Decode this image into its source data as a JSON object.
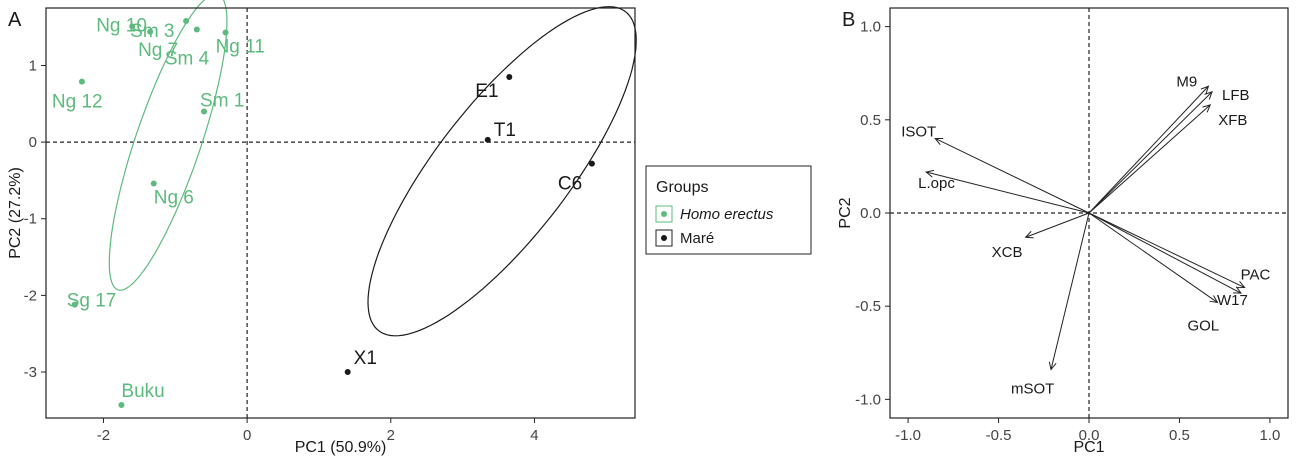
{
  "chart_data": [
    {
      "panel": "A",
      "type": "scatter",
      "xlabel": "PC1 (50.9%)",
      "ylabel": "PC2 (27.2%)",
      "xlim": [
        -2.8,
        5.4
      ],
      "ylim": [
        -3.6,
        1.75
      ],
      "xticks": [
        "-2",
        "0",
        "2",
        "4"
      ],
      "yticks": [
        "-3",
        "-2",
        "-1",
        "0",
        "1"
      ],
      "reference_lines": {
        "x": 0,
        "y": 0,
        "style": "dashed"
      },
      "legend": {
        "title": "Groups",
        "placement": "right",
        "items": [
          {
            "label": "Homo erectus",
            "color": "#5dba7d",
            "italic": true
          },
          {
            "label": "Maré",
            "color": "#1a1a1a",
            "italic": false
          }
        ]
      },
      "series": [
        {
          "name": "Homo erectus",
          "color": "#5dba7d",
          "points": [
            {
              "label": "Ng 10",
              "x": -1.6,
              "y": 1.51
            },
            {
              "label": "Sm 3",
              "x": -1.35,
              "y": 1.44
            },
            {
              "label": "Ng 7",
              "x": -0.85,
              "y": 1.58
            },
            {
              "label": "Sm 4",
              "x": -0.7,
              "y": 1.47
            },
            {
              "label": "Ng 11",
              "x": -0.3,
              "y": 1.43
            },
            {
              "label": "Ng 12",
              "x": -2.3,
              "y": 0.79
            },
            {
              "label": "Sm 1",
              "x": -0.6,
              "y": 0.4
            },
            {
              "label": "Ng 6",
              "x": -1.3,
              "y": -0.54
            },
            {
              "label": "Sg 17",
              "x": -2.4,
              "y": -2.12
            },
            {
              "label": "Buku",
              "x": -1.75,
              "y": -3.43
            }
          ],
          "ellipse": {
            "center": [
              -1.1,
              0.0
            ],
            "semi_axes": [
              2.05,
              0.45
            ],
            "angle_deg": 70
          }
        },
        {
          "name": "Maré",
          "color": "#1a1a1a",
          "points": [
            {
              "label": "E1",
              "x": 3.65,
              "y": 0.85
            },
            {
              "label": "T1",
              "x": 3.35,
              "y": 0.03
            },
            {
              "label": "C6",
              "x": 4.8,
              "y": -0.28
            },
            {
              "label": "X1",
              "x": 1.4,
              "y": -3.0
            }
          ],
          "ellipse": {
            "center": [
              3.55,
              -0.38
            ],
            "semi_axes": [
              2.7,
              0.9
            ],
            "angle_deg": 50
          }
        }
      ]
    },
    {
      "panel": "B",
      "type": "scatter",
      "subtype": "biplot-loadings",
      "xlabel": "PC1",
      "ylabel": "PC2",
      "xlim": [
        -1.1,
        1.1
      ],
      "ylim": [
        -1.1,
        1.1
      ],
      "xticks": [
        "-1.0",
        "-0.5",
        "0.0",
        "0.5",
        "1.0"
      ],
      "yticks": [
        "-1.0",
        "-0.5",
        "0.0",
        "0.5",
        "1.0"
      ],
      "reference_lines": {
        "x": 0,
        "y": 0,
        "style": "dashed"
      },
      "arrows": [
        {
          "label": "M9",
          "x": 0.66,
          "y": 0.68
        },
        {
          "label": "LFB",
          "x": 0.68,
          "y": 0.65
        },
        {
          "label": "XFB",
          "x": 0.67,
          "y": 0.58
        },
        {
          "label": "ISOT",
          "x": -0.85,
          "y": 0.4
        },
        {
          "label": "L.opc",
          "x": -0.9,
          "y": 0.22
        },
        {
          "label": "XCB",
          "x": -0.35,
          "y": -0.13
        },
        {
          "label": "PAC",
          "x": 0.86,
          "y": -0.4
        },
        {
          "label": "W17",
          "x": 0.84,
          "y": -0.43
        },
        {
          "label": "GOL",
          "x": 0.71,
          "y": -0.48
        },
        {
          "label": "mSOT",
          "x": -0.21,
          "y": -0.84
        }
      ]
    }
  ]
}
